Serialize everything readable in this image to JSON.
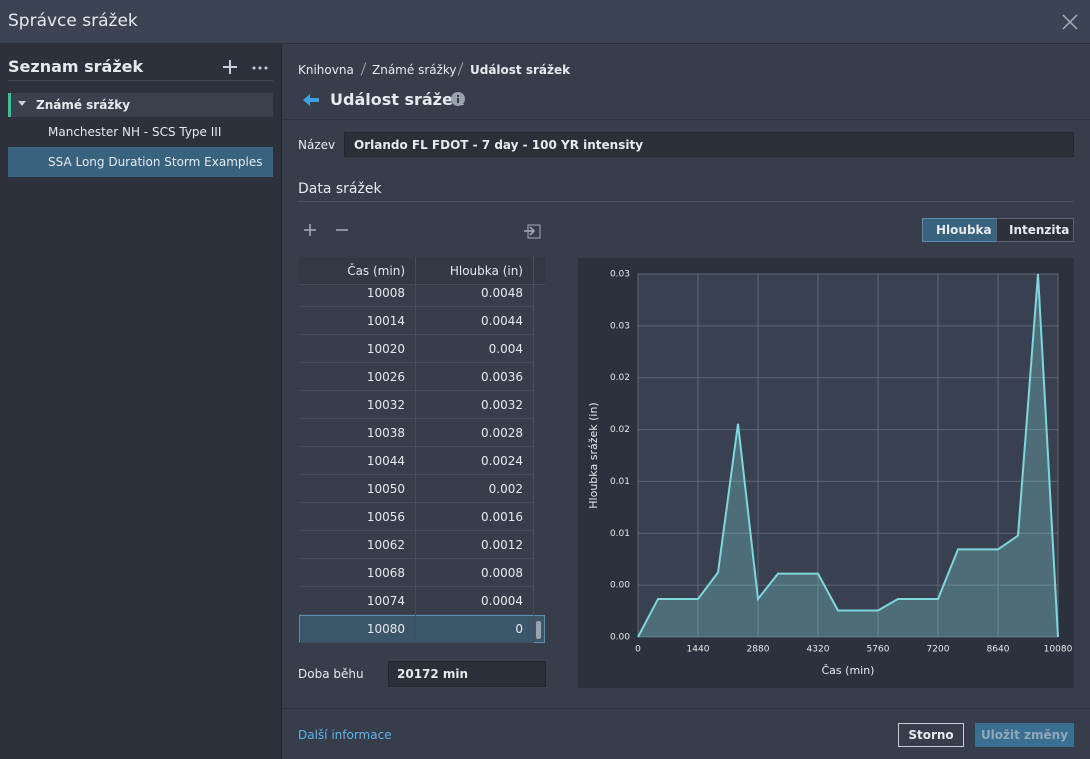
{
  "window": {
    "title": "Správce srážek"
  },
  "sidebar": {
    "title": "Seznam srážek",
    "group": "Známé srážky",
    "items": [
      "Manchester NH - SCS Type III",
      "SSA Long Duration Storm Examples"
    ]
  },
  "breadcrumb": [
    "Knihovna",
    "Známé srážky",
    "Událost srážek"
  ],
  "heading": "Událost srážek",
  "name_field": {
    "label": "Název",
    "value": "Orlando FL FDOT - 7 day - 100 YR intensity"
  },
  "section": "Data srážek",
  "toggle": [
    "Hloubka",
    "Intenzita"
  ],
  "table": {
    "headers": [
      "Čas (min)",
      "Hloubka (in)"
    ],
    "rows": [
      [
        10008,
        0.0048
      ],
      [
        10014,
        0.0044
      ],
      [
        10020,
        0.004
      ],
      [
        10026,
        0.0036
      ],
      [
        10032,
        0.0032
      ],
      [
        10038,
        0.0028
      ],
      [
        10044,
        0.0024
      ],
      [
        10050,
        0.002
      ],
      [
        10056,
        0.0016
      ],
      [
        10062,
        0.0012
      ],
      [
        10068,
        0.0008
      ],
      [
        10074,
        0.0004
      ],
      [
        10080,
        0
      ]
    ]
  },
  "duration": {
    "label": "Doba běhu",
    "value": "20172 min"
  },
  "footer": {
    "link": "Další informace",
    "cancel": "Storno",
    "save": "Uložit změny"
  },
  "chart_data": {
    "type": "line",
    "x_label": "Čas (min)",
    "y_label": "Hloubka srážek (in)",
    "x": [
      0,
      480,
      1440,
      1920,
      2400,
      2880,
      3360,
      4320,
      4800,
      5760,
      6240,
      7200,
      7680,
      8640,
      9120,
      9600,
      10080
    ],
    "series": [
      {
        "color": "#7fd6dc",
        "values": [
          0,
          0.0033,
          0.0033,
          0.0056,
          0.0185,
          0.0033,
          0.0055,
          0.0055,
          0.0023,
          0.0023,
          0.0033,
          0.0033,
          0.0076,
          0.0076,
          0.0088,
          0.0315,
          0
        ]
      }
    ],
    "xlim": [
      0,
      10080
    ],
    "xticks": [
      0,
      1440,
      2880,
      4320,
      5760,
      7200,
      8640,
      10080
    ],
    "ylim": [
      0,
      0.0315
    ],
    "yticks": [
      {
        "value": 0,
        "label": "0.00"
      },
      {
        "value": 0.0045,
        "label": "0.00"
      },
      {
        "value": 0.009,
        "label": "0.01"
      },
      {
        "value": 0.0135,
        "label": "0.01"
      },
      {
        "value": 0.018,
        "label": "0.02"
      },
      {
        "value": 0.0225,
        "label": "0.02"
      },
      {
        "value": 0.027,
        "label": "0.03"
      },
      {
        "value": 0.0315,
        "label": "0.03"
      }
    ],
    "grid": true
  }
}
